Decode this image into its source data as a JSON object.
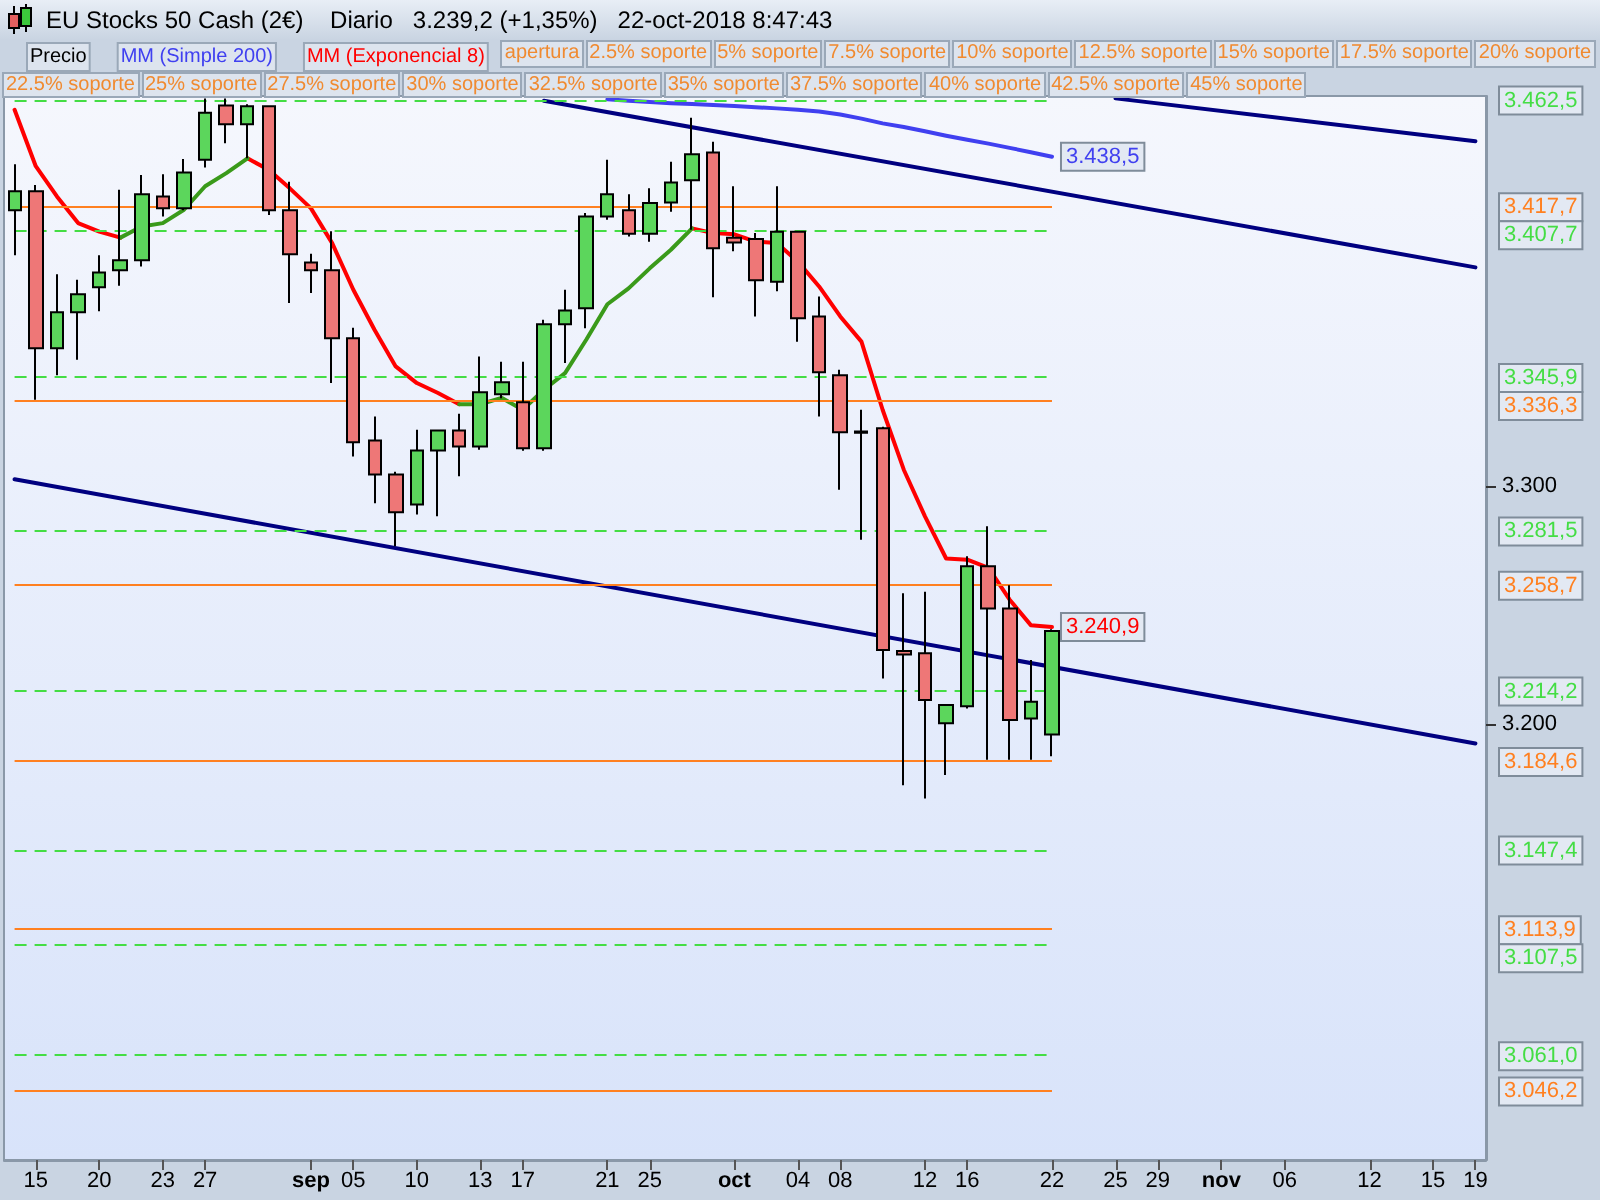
{
  "chart_data": {
    "type": "candlestick",
    "title": "EU Stocks 50 Cash (2€)",
    "subtitle": "Diario   3.239,2 (+1,35%)   22-oct-2018 8:47:43",
    "categories": [
      null,
      "15",
      null,
      null,
      "20",
      null,
      null,
      "23",
      null,
      "27",
      null,
      null,
      null,
      null,
      "sep",
      null,
      "05",
      null,
      null,
      "10",
      null,
      null,
      "13",
      null,
      "17",
      null,
      null,
      null,
      "21",
      null,
      "25",
      null,
      null,
      null,
      "oct",
      null,
      null,
      "04",
      null,
      "08",
      null,
      null,
      null,
      "12",
      null,
      "16",
      null,
      null,
      null,
      "22",
      null,
      null,
      "25",
      null,
      "29",
      null,
      null,
      "nov",
      null,
      null,
      "06",
      null,
      null,
      null,
      "12",
      null,
      null,
      "15",
      null,
      "19"
    ],
    "series": [
      {
        "name": "Precio",
        "type": "candlestick",
        "color": "#000000",
        "colors": [
          "#5cd65c",
          "#ee7777",
          "#5cd65c",
          "#5cd65c",
          "#5cd65c",
          "#5cd65c",
          "#5cd65c",
          "#ee7777",
          "#5cd65c",
          "#5cd65c",
          "#ee7777",
          "#5cd65c",
          "#ee7777",
          "#ee7777",
          "#ee7777",
          "#ee7777",
          "#ee7777",
          "#ee7777",
          "#ee7777",
          "#5cd65c",
          "#5cd65c",
          "#ee7777",
          "#5cd65c",
          "#5cd65c",
          "#ee7777",
          "#5cd65c",
          "#5cd65c",
          "#5cd65c",
          "#5cd65c",
          "#ee7777",
          "#5cd65c",
          "#5cd65c",
          "#5cd65c",
          "#ee7777",
          "#ee7777",
          "#ee7777",
          "#5cd65c",
          "#ee7777",
          "#ee7777",
          "#ee7777",
          "#ee7777",
          "#ee7777",
          "#ee7777",
          "#ee7777",
          "#5cd65c",
          "#5cd65c",
          "#ee7777",
          "#ee7777",
          "#5cd65c",
          "#5cd65c",
          null,
          null,
          null,
          null,
          null,
          null,
          null,
          null,
          null,
          null,
          null,
          null,
          null,
          null,
          null,
          null,
          null,
          null,
          null,
          null
        ],
        "ohlc": [
          [
            3416.0,
            3435.3,
            3397.1,
            3424.0
          ],
          [
            3424.0,
            3426.6,
            3336.4,
            3358.0
          ],
          [
            3358.0,
            3389.1,
            3346.7,
            3373.1
          ],
          [
            3373.1,
            3386.8,
            3353.2,
            3380.7
          ],
          [
            3383.7,
            3397.1,
            3373.6,
            3389.9
          ],
          [
            3390.8,
            3424.6,
            3384.3,
            3395.0
          ],
          [
            3395.0,
            3430.8,
            3392.4,
            3422.7
          ],
          [
            3421.8,
            3431.1,
            3413.4,
            3416.8
          ],
          [
            3416.8,
            3437.5,
            3416.0,
            3431.9
          ],
          [
            3437.2,
            3463.0,
            3434.0,
            3457.0
          ],
          [
            3460.0,
            3463.0,
            3444.2,
            3452.1
          ],
          [
            3452.1,
            3460.5,
            3437.8,
            3459.7
          ],
          [
            3459.7,
            3460.0,
            3414.0,
            3416.0
          ],
          [
            3416.0,
            3428.0,
            3377.0,
            3397.5
          ],
          [
            3394.1,
            3397.7,
            3381.2,
            3390.8
          ],
          [
            3390.8,
            3407.2,
            3343.4,
            3362.2
          ],
          [
            3362.2,
            3366.6,
            3312.6,
            3318.5
          ],
          [
            3319.3,
            3329.4,
            3292.9,
            3305.0
          ],
          [
            3305.0,
            3306.1,
            3274.8,
            3289.1
          ],
          [
            3292.4,
            3323.8,
            3288.2,
            3315.1
          ],
          [
            3315.1,
            3323.8,
            3287.4,
            3323.5
          ],
          [
            3323.5,
            3330.5,
            3304.2,
            3316.8
          ],
          [
            3316.8,
            3354.6,
            3315.4,
            3339.5
          ],
          [
            3338.7,
            3352.4,
            3337.0,
            3343.7
          ],
          [
            3335.3,
            3352.4,
            3315.0,
            3316.0
          ],
          [
            3316.0,
            3370.0,
            3315.0,
            3368.1
          ],
          [
            3368.1,
            3382.6,
            3351.8,
            3373.9
          ],
          [
            3374.8,
            3414.8,
            3366.4,
            3413.4
          ],
          [
            3413.4,
            3437.2,
            3412.0,
            3422.7
          ],
          [
            3416.0,
            3422.7,
            3405.0,
            3406.1
          ],
          [
            3406.1,
            3425.2,
            3402.8,
            3419.0
          ],
          [
            3419.3,
            3436.4,
            3415.4,
            3427.7
          ],
          [
            3428.6,
            3454.9,
            3407.8,
            3439.5
          ],
          [
            3440.3,
            3444.8,
            3379.5,
            3400.0
          ],
          [
            3404.5,
            3426.1,
            3398.8,
            3402.5
          ],
          [
            3403.9,
            3406.4,
            3371.4,
            3386.6
          ],
          [
            3386.0,
            3426.1,
            3382.0,
            3407.0
          ],
          [
            3407.0,
            3407.0,
            3360.8,
            3370.6
          ],
          [
            3371.4,
            3379.8,
            3329.4,
            3347.9
          ],
          [
            3346.7,
            3349.0,
            3298.6,
            3322.7
          ],
          [
            3323.0,
            3332.2,
            3277.6,
            3322.5
          ],
          [
            3324.4,
            3325.0,
            3219.3,
            3231.3
          ],
          [
            3230.8,
            3255.1,
            3174.4,
            3229.4
          ],
          [
            3229.9,
            3255.7,
            3168.9,
            3210.3
          ],
          [
            3200.5,
            3208.5,
            3178.7,
            3208.1
          ],
          [
            3207.6,
            3270.6,
            3206.7,
            3266.4
          ],
          [
            3266.4,
            3283.2,
            3185.1,
            3248.7
          ],
          [
            3248.7,
            3258.5,
            3185.1,
            3201.9
          ],
          [
            3202.5,
            3227.1,
            3185.1,
            3209.5
          ],
          [
            3195.8,
            3240.0,
            3186.6,
            3239.2
          ],
          null,
          null,
          null,
          null,
          null,
          null,
          null,
          null,
          null,
          null,
          null,
          null,
          null,
          null,
          null,
          null,
          null,
          null,
          null,
          null
        ]
      },
      {
        "name": "MM (Simple 200)",
        "type": "line",
        "color": "#4040f0",
        "values": [
          null,
          null,
          null,
          null,
          null,
          null,
          null,
          null,
          null,
          null,
          null,
          null,
          null,
          null,
          null,
          null,
          null,
          null,
          null,
          null,
          null,
          null,
          null,
          null,
          null,
          null,
          null,
          null,
          3462.6,
          3462.0,
          3461.5,
          3461.0,
          3460.6,
          3460.2,
          3459.8,
          3459.3,
          3458.8,
          3458.2,
          3457.5,
          3456.2,
          3454.5,
          3452.5,
          3451.0,
          3449.2,
          3447.3,
          3445.6,
          3444.0,
          3442.2,
          3440.4,
          3438.5,
          null,
          null,
          null,
          null,
          null,
          null,
          null,
          null,
          null,
          null,
          null,
          null,
          null,
          null,
          null,
          null,
          null,
          null,
          null,
          null
        ],
        "value_labels": [
          null,
          null,
          null,
          null,
          null,
          null,
          null,
          null,
          null,
          null,
          null,
          null,
          null,
          null,
          null,
          null,
          null,
          null,
          null,
          null,
          null,
          null,
          null,
          null,
          null,
          null,
          null,
          null,
          null,
          null,
          null,
          null,
          null,
          null,
          null,
          null,
          null,
          null,
          null,
          null,
          null,
          null,
          null,
          null,
          null,
          null,
          null,
          null,
          null,
          "3.438,5",
          null,
          null,
          null,
          null,
          null,
          null,
          null,
          null,
          null,
          null,
          null,
          null,
          null,
          null,
          null,
          null,
          null,
          null,
          null,
          null
        ]
      },
      {
        "name": "MM (Exponencial 8)",
        "type": "line",
        "color": "#ff0000",
        "values": [
          3458.2,
          3434.5,
          3421.8,
          3410.6,
          3407.0,
          3404.5,
          null,
          null,
          null,
          null,
          null,
          3437.8,
          3433.0,
          3425.2,
          3416.8,
          3402.2,
          3382.6,
          3365.8,
          3350.4,
          3343.4,
          3339.2,
          3334.5,
          null,
          null,
          null,
          null,
          null,
          null,
          null,
          null,
          null,
          null,
          3408.4,
          3406.4,
          3405.9,
          3402.8,
          3402.2,
          3394.4,
          3384.0,
          3371.4,
          3360.8,
          3332.2,
          3307.0,
          3287.4,
          3269.7,
          3269.2,
          3265.8,
          3252.4,
          3241.7,
          3240.9,
          null,
          null,
          null,
          null,
          null,
          null,
          null,
          null,
          null,
          null,
          null,
          null,
          null,
          null,
          null,
          null,
          null,
          null,
          null,
          null
        ],
        "value_labels": [
          null,
          null,
          null,
          null,
          null,
          null,
          null,
          null,
          null,
          null,
          null,
          null,
          null,
          null,
          null,
          null,
          null,
          null,
          null,
          null,
          null,
          null,
          null,
          null,
          null,
          null,
          null,
          null,
          null,
          null,
          null,
          null,
          null,
          null,
          null,
          null,
          null,
          null,
          null,
          null,
          null,
          null,
          null,
          null,
          null,
          null,
          null,
          null,
          null,
          "3.240,9",
          null,
          null,
          null,
          null,
          null,
          null,
          null,
          null,
          null,
          null,
          null,
          null,
          null,
          null,
          null,
          null,
          null,
          null,
          null,
          null
        ]
      },
      {
        "type": "line",
        "color": "#3a9a1a",
        "values": [
          null,
          null,
          null,
          null,
          null,
          3404.5,
          3409.2,
          3410.6,
          3416.2,
          3426.1,
          3431.6,
          3437.8,
          null,
          null,
          null,
          null,
          null,
          null,
          null,
          null,
          null,
          3334.5,
          3334.5,
          3337.2,
          3332.2,
          3340.6,
          3347.6,
          3361.6,
          3376.5,
          3383.2,
          3391.6,
          3399.4,
          3408.4,
          null,
          null,
          null,
          null,
          null,
          null,
          null,
          null,
          null,
          null,
          null,
          null,
          null,
          null,
          null,
          null,
          null,
          null,
          null,
          null,
          null,
          null,
          null,
          null,
          null,
          null,
          null,
          null,
          null,
          null,
          null,
          null,
          null,
          null,
          null,
          null,
          null
        ]
      },
      {
        "type": "line",
        "color": "#000080",
        "values": [
          3303,
          null,
          null,
          null,
          null,
          null,
          null,
          null,
          null,
          null,
          null,
          null,
          null,
          null,
          null,
          null,
          null,
          null,
          null,
          null,
          null,
          null,
          null,
          null,
          null,
          null,
          null,
          null,
          null,
          null,
          null,
          null,
          null,
          null,
          null,
          null,
          null,
          null,
          null,
          null,
          null,
          null,
          null,
          null,
          null,
          null,
          null,
          null,
          null,
          null,
          null,
          null,
          null,
          null,
          null,
          null,
          null,
          null,
          null,
          null,
          null,
          null,
          null,
          null,
          null,
          null,
          null,
          null,
          null,
          3192
        ]
      },
      {
        "type": "line",
        "color": "#000080",
        "values": [
          null,
          null,
          null,
          null,
          null,
          null,
          null,
          null,
          null,
          null,
          null,
          null,
          null,
          null,
          null,
          null,
          null,
          null,
          null,
          null,
          null,
          null,
          null,
          null,
          null,
          3462,
          null,
          null,
          null,
          null,
          null,
          null,
          null,
          null,
          null,
          null,
          null,
          null,
          null,
          null,
          null,
          null,
          null,
          null,
          null,
          null,
          null,
          null,
          null,
          null,
          null,
          null,
          null,
          null,
          null,
          null,
          null,
          null,
          null,
          null,
          null,
          null,
          null,
          null,
          null,
          null,
          null,
          null,
          null,
          3392
        ]
      },
      {
        "type": "line",
        "color": "#000080",
        "values": [
          null,
          null,
          null,
          null,
          null,
          null,
          null,
          null,
          null,
          null,
          null,
          null,
          null,
          null,
          null,
          null,
          null,
          null,
          null,
          null,
          null,
          null,
          null,
          null,
          null,
          null,
          null,
          null,
          null,
          null,
          null,
          null,
          null,
          null,
          null,
          null,
          null,
          null,
          null,
          null,
          null,
          null,
          null,
          null,
          null,
          null,
          null,
          null,
          null,
          null,
          null,
          null,
          3463,
          null,
          null,
          null,
          null,
          null,
          null,
          null,
          null,
          null,
          null,
          null,
          null,
          null,
          null,
          null,
          null,
          3445
        ]
      }
    ],
    "ylim": [
      3017,
      3464
    ],
    "yticks": [
      {
        "value": 3300,
        "label": "3.300"
      },
      {
        "value": 3200,
        "label": "3.200"
      }
    ],
    "ref_lines": [
      {
        "axis": "y",
        "value": 3462.5,
        "label": "3.462,5",
        "color": "#44dd44",
        "line_style": "dashed"
      },
      {
        "axis": "y",
        "value": 3417.7,
        "label": "3.417,7",
        "color": "#ff8020",
        "line_style": "solid"
      },
      {
        "axis": "y",
        "value": 3407.7,
        "label": "3.407,7",
        "color": "#44dd44",
        "line_style": "dashed"
      },
      {
        "axis": "y",
        "value": 3345.9,
        "label": "3.345,9",
        "color": "#44dd44",
        "line_style": "dashed"
      },
      {
        "axis": "y",
        "value": 3336.3,
        "label": "3.336,3",
        "color": "#ff8020",
        "line_style": "solid"
      },
      {
        "axis": "y",
        "value": 3281.5,
        "label": "3.281,5",
        "color": "#44dd44",
        "line_style": "dashed"
      },
      {
        "axis": "y",
        "value": 3258.7,
        "label": "3.258,7",
        "color": "#ff8020",
        "line_style": "solid"
      },
      {
        "axis": "y",
        "value": 3214.2,
        "label": "3.214,2",
        "color": "#44dd44",
        "line_style": "dashed"
      },
      {
        "axis": "y",
        "value": 3184.6,
        "label": "3.184,6",
        "color": "#ff8020",
        "line_style": "solid"
      },
      {
        "axis": "y",
        "value": 3147.4,
        "label": "3.147,4",
        "color": "#44dd44",
        "line_style": "dashed"
      },
      {
        "axis": "y",
        "value": 3113.9,
        "label": "3.113,9",
        "color": "#ff8020",
        "line_style": "solid"
      },
      {
        "axis": "y",
        "value": 3107.5,
        "label": "3.107,5",
        "color": "#44dd44",
        "line_style": "dashed"
      },
      {
        "axis": "y",
        "value": 3061.0,
        "label": "3.061,0",
        "color": "#44dd44",
        "line_style": "dashed"
      },
      {
        "axis": "y",
        "value": 3046.2,
        "label": "3.046,2",
        "color": "#ff8020",
        "line_style": "solid"
      }
    ],
    "annotations": [
      "apertura",
      "2.5% soporte",
      "5% soporte",
      "7.5% soporte",
      "10% soporte",
      "12.5% soporte",
      "15% soporte",
      "17.5% soporte",
      "20% soporte",
      "22.5% soporte",
      "25% soporte",
      "27.5% soporte",
      "30% soporte",
      "32.5% soporte",
      "35% soporte",
      "37.5% soporte",
      "40% soporte",
      "42.5% soporte",
      "45% soporte"
    ],
    "legend": "top left",
    "grid": false
  }
}
